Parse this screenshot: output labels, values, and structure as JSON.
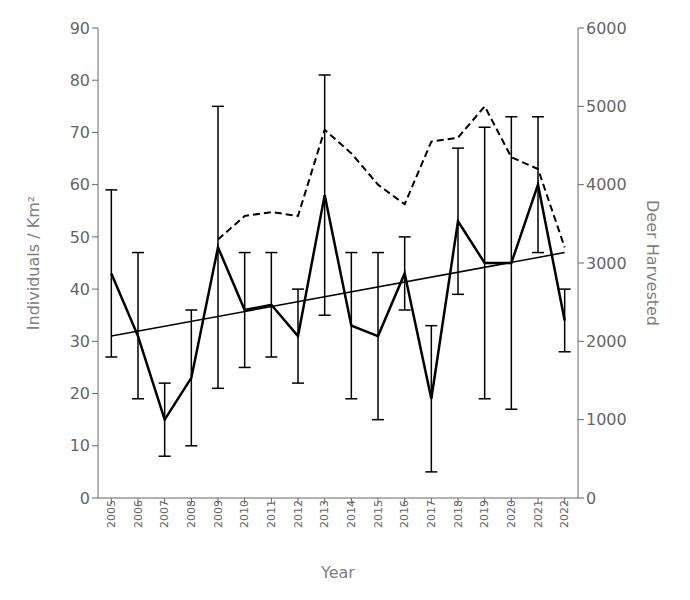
{
  "chart_data": {
    "type": "line",
    "xlabel": "Year",
    "ylabel": "Individuals / Km²",
    "y2label": "Deer Harvested",
    "xlim": [
      2004.5,
      2022.5
    ],
    "xticks": [
      2005,
      2006,
      2007,
      2008,
      2009,
      2010,
      2011,
      2012,
      2013,
      2014,
      2015,
      2016,
      2017,
      2018,
      2019,
      2020,
      2021,
      2022
    ],
    "ylim": [
      0,
      90
    ],
    "yticks": [
      0,
      10,
      20,
      30,
      40,
      50,
      60,
      70,
      80,
      90
    ],
    "y2lim": [
      0,
      6000
    ],
    "y2ticks": [
      0,
      1000,
      2000,
      3000,
      4000,
      5000,
      6000
    ],
    "grid": false,
    "series": [
      {
        "x": [
          2005,
          2006,
          2007,
          2008,
          2009,
          2010,
          2011,
          2012,
          2013,
          2014,
          2015,
          2016,
          2017,
          2018,
          2019,
          2020,
          2021,
          2022
        ],
        "values": [
          43,
          31,
          15,
          23,
          48,
          36,
          37,
          31,
          58,
          33,
          31,
          43,
          19,
          53,
          45,
          45,
          60,
          34
        ],
        "error_up": [
          16,
          16,
          7,
          13,
          27,
          11,
          10,
          9,
          23,
          14,
          16,
          7,
          14,
          14,
          26,
          28,
          13,
          6
        ],
        "error_dn": [
          16,
          12,
          7,
          13,
          27,
          11,
          10,
          9,
          23,
          14,
          16,
          7,
          14,
          14,
          26,
          28,
          13,
          6
        ],
        "color": "#000000",
        "line_style": "solid"
      },
      {
        "x": [
          2005,
          2022
        ],
        "values": [
          31.0,
          47.0
        ],
        "color": "#000000",
        "line_style": "solid"
      },
      {
        "x": [
          2009,
          2010,
          2011,
          2012,
          2013,
          2014,
          2015,
          2016,
          2017,
          2018,
          2019,
          2020,
          2021,
          2022
        ],
        "values": [
          3300,
          3600,
          3650,
          3600,
          4700,
          4400,
          4000,
          3750,
          4550,
          4600,
          5000,
          4350,
          4200,
          3200
        ],
        "color": "#000000",
        "line_style": "dashed",
        "axis": "y2"
      }
    ]
  }
}
